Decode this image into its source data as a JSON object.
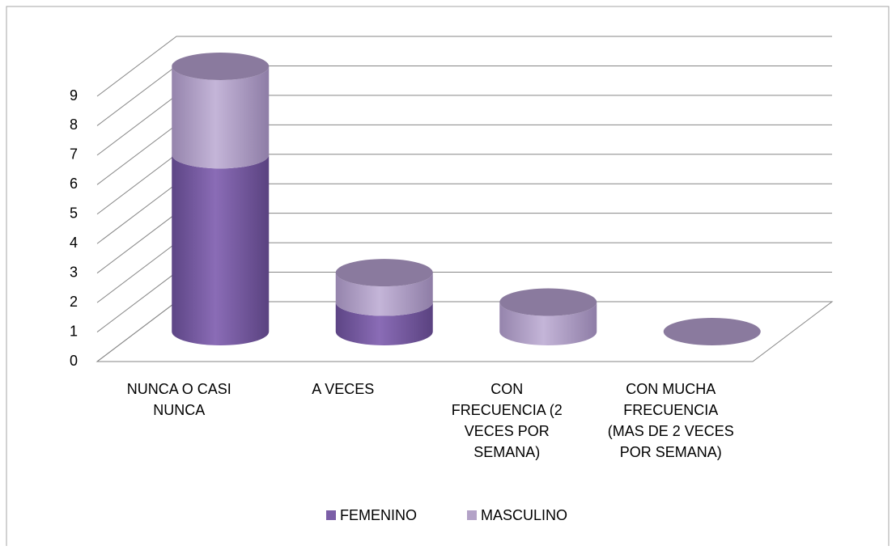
{
  "chart_data": {
    "type": "bar3d_stacked_cylinder",
    "categories": [
      "NUNCA O CASI\nNUNCA",
      "A VECES",
      "CON\nFRECUENCIA (2\nVECES POR\nSEMANA)",
      "CON MUCHA\nFRECUENCIA\n(MAS DE 2 VECES\nPOR SEMANA)"
    ],
    "series": [
      {
        "name": "FEMENINO",
        "color": "#7b5ea7",
        "values": [
          6,
          1,
          0,
          0
        ]
      },
      {
        "name": "MASCULINO",
        "color": "#b3a2c7",
        "values": [
          3,
          1,
          1,
          0
        ]
      }
    ],
    "ylim": [
      0,
      9
    ],
    "yticks": [
      0,
      1,
      2,
      3,
      4,
      5,
      6,
      7,
      8,
      9
    ],
    "grid": true,
    "legend": "bottom"
  }
}
